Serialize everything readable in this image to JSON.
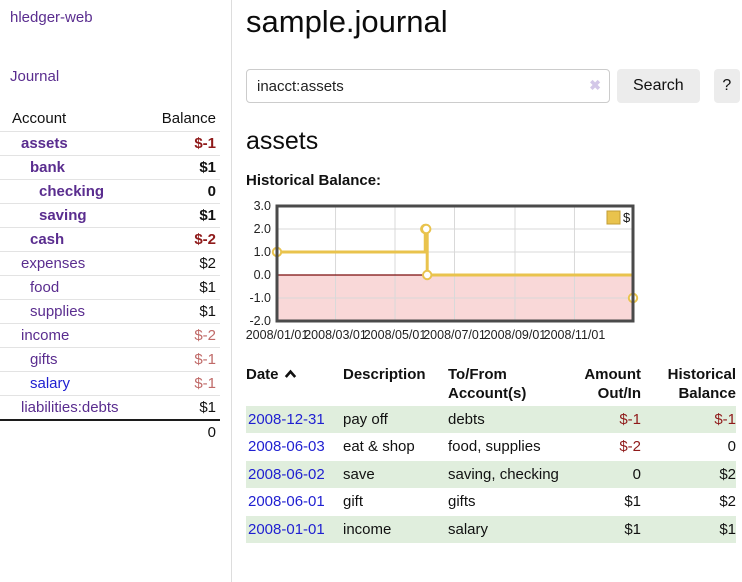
{
  "colors": {
    "purple_link": "#5a2d8f",
    "blue_link": "#1f1fd1",
    "negative_strong": "#8f1a1a",
    "negative_soft": "#c06a68",
    "row_green": "#e0eedd",
    "chart_gold": "#e9c34d",
    "chart_gold_border": "#c29d35",
    "chart_negative_region": "#f9d8d8",
    "chart_zero_line": "#7b0c0c",
    "chart_grid": "#d9d9d9",
    "chart_border": "#4a4a4a"
  },
  "sidebar": {
    "brand": "hledger-web",
    "journal_link": "Journal",
    "accounts_table": {
      "headers": {
        "account": "Account",
        "balance": "Balance"
      },
      "rows": [
        {
          "name": "assets",
          "balance": "$-1",
          "depth": 0,
          "bold": true,
          "balance_style": "negative_strong",
          "link_style": "purple"
        },
        {
          "name": "bank",
          "balance": "$1",
          "depth": 1,
          "bold": true,
          "balance_style": "normal",
          "link_style": "purple"
        },
        {
          "name": "checking",
          "balance": "0",
          "depth": 2,
          "bold": true,
          "balance_style": "normal",
          "link_style": "purple"
        },
        {
          "name": "saving",
          "balance": "$1",
          "depth": 2,
          "bold": true,
          "balance_style": "normal",
          "link_style": "purple"
        },
        {
          "name": "cash",
          "balance": "$-2",
          "depth": 1,
          "bold": true,
          "balance_style": "negative_strong",
          "link_style": "purple"
        },
        {
          "name": "expenses",
          "balance": "$2",
          "depth": 0,
          "bold": false,
          "balance_style": "normal",
          "link_style": "purple"
        },
        {
          "name": "food",
          "balance": "$1",
          "depth": 1,
          "bold": false,
          "balance_style": "normal",
          "link_style": "purple"
        },
        {
          "name": "supplies",
          "balance": "$1",
          "depth": 1,
          "bold": false,
          "balance_style": "normal",
          "link_style": "purple"
        },
        {
          "name": "income",
          "balance": "$-2",
          "depth": 0,
          "bold": false,
          "balance_style": "negative_soft",
          "link_style": "purple"
        },
        {
          "name": "gifts",
          "balance": "$-1",
          "depth": 1,
          "bold": false,
          "balance_style": "negative_soft",
          "link_style": "purple"
        },
        {
          "name": "salary",
          "balance": "$-1",
          "depth": 1,
          "bold": false,
          "balance_style": "negative_soft",
          "link_style": "blue"
        },
        {
          "name": "liabilities:debts",
          "balance": "$1",
          "depth": 0,
          "bold": false,
          "balance_style": "normal",
          "link_style": "purple"
        }
      ],
      "total": "0"
    }
  },
  "main": {
    "title": "sample.journal",
    "search": {
      "value": "inacct:assets",
      "clear": "✖",
      "button": "Search",
      "help": "?"
    },
    "account_heading": "assets",
    "chart_title": "Historical Balance:"
  },
  "chart_data": {
    "type": "line",
    "style": "step-after",
    "title": "Historical Balance",
    "series": [
      {
        "name": "$",
        "points": [
          [
            "2008-01-01",
            1
          ],
          [
            "2008-06-01",
            2
          ],
          [
            "2008-06-02",
            2
          ],
          [
            "2008-06-03",
            0
          ],
          [
            "2008-12-31",
            -1
          ]
        ]
      }
    ],
    "x_ticks": [
      "2008/01/01",
      "2008/03/01",
      "2008/05/01",
      "2008/07/01",
      "2008/09/01",
      "2008/11/01"
    ],
    "y_ticks": [
      3.0,
      2.0,
      1.0,
      0.0,
      -1.0,
      -2.0
    ],
    "xlim": [
      "2008-01-01",
      "2008-12-31"
    ],
    "ylim": [
      -2,
      3
    ],
    "grid": true,
    "negative_region_shaded": true,
    "legend": {
      "label": "$",
      "position": "top-right"
    }
  },
  "register_table": {
    "headers": {
      "date": "Date",
      "description": "Description",
      "accounts": "To/From Account(s)",
      "amount": "Amount Out/In",
      "balance": "Historical Balance"
    },
    "sort": {
      "column": "date",
      "direction": "ascending"
    },
    "rows": [
      {
        "date": "2008-12-31",
        "description": "pay off",
        "accounts": "debts",
        "amount": "$-1",
        "balance": "$-1",
        "amount_style": "negative",
        "balance_style": "negative",
        "shaded": true
      },
      {
        "date": "2008-06-03",
        "description": "eat & shop",
        "accounts": "food, supplies",
        "amount": "$-2",
        "balance": "0",
        "amount_style": "negative",
        "balance_style": "normal",
        "shaded": false
      },
      {
        "date": "2008-06-02",
        "description": "save",
        "accounts": "saving, checking",
        "amount": "0",
        "balance": "$2",
        "amount_style": "normal",
        "balance_style": "normal",
        "shaded": true
      },
      {
        "date": "2008-06-01",
        "description": "gift",
        "accounts": "gifts",
        "amount": "$1",
        "balance": "$2",
        "amount_style": "normal",
        "balance_style": "normal",
        "shaded": false
      },
      {
        "date": "2008-01-01",
        "description": "income",
        "accounts": "salary",
        "amount": "$1",
        "balance": "$1",
        "amount_style": "normal",
        "balance_style": "normal",
        "shaded": true
      }
    ]
  }
}
